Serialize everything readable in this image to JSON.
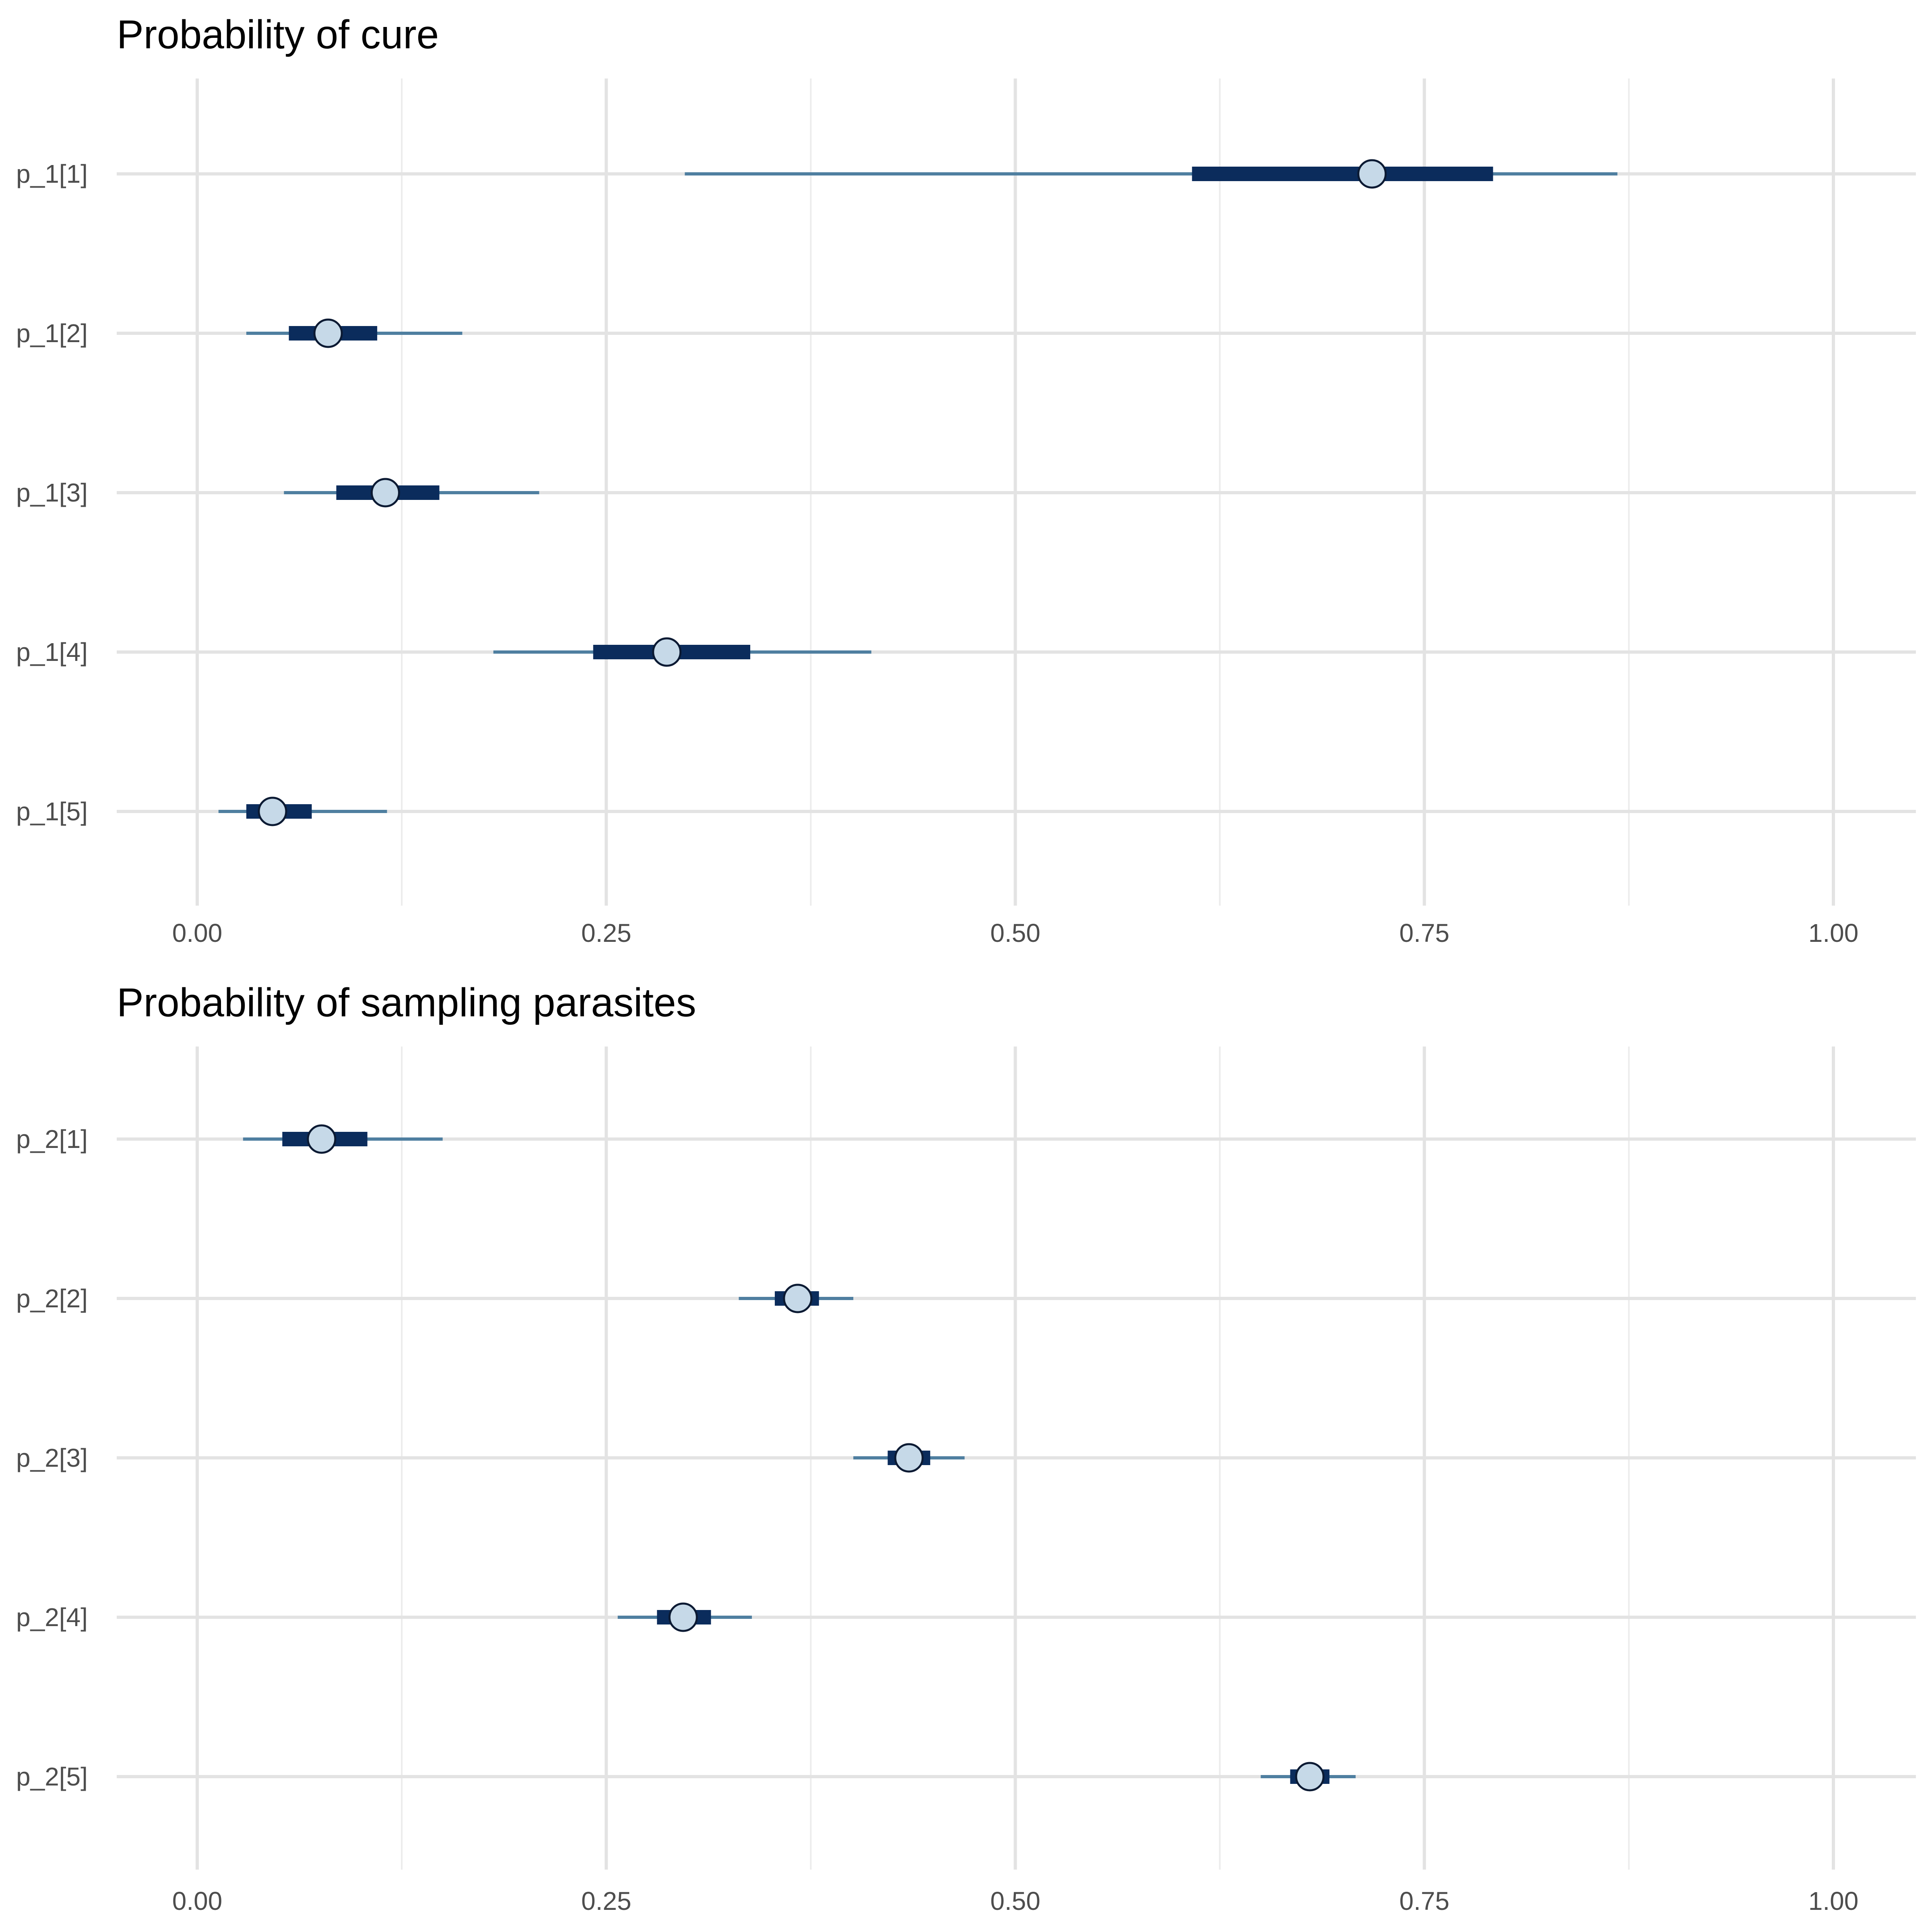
{
  "chart_data": [
    {
      "type": "interval",
      "title": "Probability of cure",
      "xlabel": "",
      "ylabel": "",
      "xlim": [
        0,
        1
      ],
      "grid": true,
      "legend": "none",
      "x_ticks": [
        0,
        0.25,
        0.5,
        0.75,
        1
      ],
      "x_tick_labels": [
        "0.00",
        "0.25",
        "0.50",
        "0.75",
        "1.00"
      ],
      "categories": [
        "p_1[1]",
        "p_1[2]",
        "p_1[3]",
        "p_1[4]",
        "p_1[5]"
      ],
      "points": [
        {
          "label": "p_1[1]",
          "median": 0.718,
          "inner": [
            0.608,
            0.792
          ],
          "outer": [
            0.298,
            0.868
          ]
        },
        {
          "label": "p_1[2]",
          "median": 0.08,
          "inner": [
            0.056,
            0.11
          ],
          "outer": [
            0.03,
            0.162
          ]
        },
        {
          "label": "p_1[3]",
          "median": 0.115,
          "inner": [
            0.085,
            0.148
          ],
          "outer": [
            0.053,
            0.209
          ]
        },
        {
          "label": "p_1[4]",
          "median": 0.287,
          "inner": [
            0.242,
            0.338
          ],
          "outer": [
            0.181,
            0.412
          ]
        },
        {
          "label": "p_1[5]",
          "median": 0.046,
          "inner": [
            0.03,
            0.07
          ],
          "outer": [
            0.013,
            0.116
          ]
        }
      ]
    },
    {
      "type": "interval",
      "title": "Probability of sampling parasites",
      "xlabel": "",
      "ylabel": "",
      "xlim": [
        0,
        1
      ],
      "grid": true,
      "legend": "none",
      "x_ticks": [
        0,
        0.25,
        0.5,
        0.75,
        1
      ],
      "x_tick_labels": [
        "0.00",
        "0.25",
        "0.50",
        "0.75",
        "1.00"
      ],
      "categories": [
        "p_2[1]",
        "p_2[2]",
        "p_2[3]",
        "p_2[4]",
        "p_2[5]"
      ],
      "points": [
        {
          "label": "p_2[1]",
          "median": 0.076,
          "inner": [
            0.052,
            0.104
          ],
          "outer": [
            0.028,
            0.15
          ]
        },
        {
          "label": "p_2[2]",
          "median": 0.367,
          "inner": [
            0.353,
            0.38
          ],
          "outer": [
            0.331,
            0.401
          ]
        },
        {
          "label": "p_2[3]",
          "median": 0.435,
          "inner": [
            0.422,
            0.448
          ],
          "outer": [
            0.401,
            0.469
          ]
        },
        {
          "label": "p_2[4]",
          "median": 0.297,
          "inner": [
            0.281,
            0.314
          ],
          "outer": [
            0.257,
            0.339
          ]
        },
        {
          "label": "p_2[5]",
          "median": 0.68,
          "inner": [
            0.668,
            0.692
          ],
          "outer": [
            0.65,
            0.708
          ]
        }
      ]
    }
  ],
  "colors": {
    "outer_interval": "#4f7fa0",
    "inner_interval": "#0b2c5c",
    "point_fill": "#c6d9e8",
    "point_stroke": "#0b1a33",
    "grid_major": "#e3e3e3",
    "grid_minor": "#ececec"
  }
}
